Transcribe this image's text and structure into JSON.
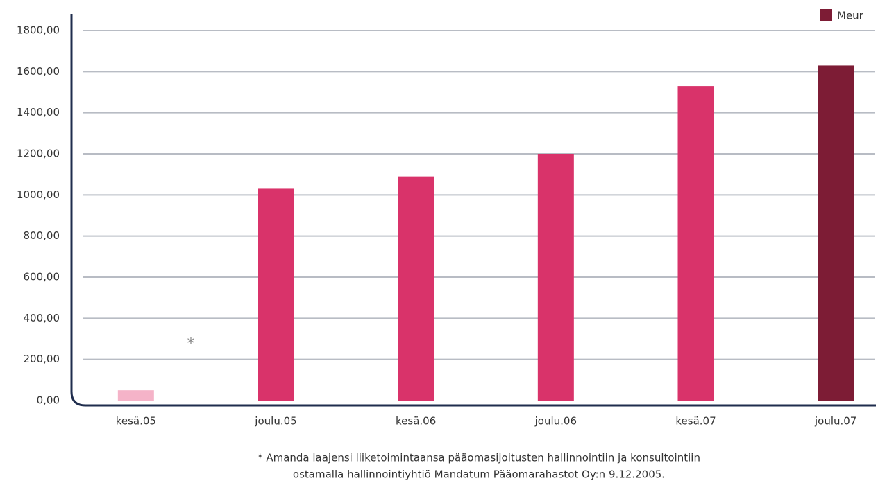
{
  "chart_data": {
    "type": "bar",
    "categories": [
      "kesä.05",
      "joulu.05",
      "kesä.06",
      "joulu.06",
      "kesä.07",
      "joulu.07"
    ],
    "series": [
      {
        "name": "Meur",
        "color": "#7d1c35",
        "values": [
          50,
          1030,
          1090,
          1200,
          1530,
          1630
        ],
        "bar_colors": [
          "#f5b3c8",
          "#d9336a",
          "#d9336a",
          "#d9336a",
          "#d9336a",
          "#7d1c35"
        ]
      }
    ],
    "ylim": [
      0,
      1800
    ],
    "yticks": [
      {
        "value": 0,
        "label": "0,00"
      },
      {
        "value": 200,
        "label": "200,00"
      },
      {
        "value": 400,
        "label": "400,00"
      },
      {
        "value": 600,
        "label": "600,00"
      },
      {
        "value": 800,
        "label": "800,00"
      },
      {
        "value": 1000,
        "label": "1000,00"
      },
      {
        "value": 1200,
        "label": "1200,00"
      },
      {
        "value": 1400,
        "label": "1400,00"
      },
      {
        "value": 1600,
        "label": "1600,00"
      },
      {
        "value": 1800,
        "label": "1800,00"
      }
    ],
    "grid": true,
    "legend": "top-right",
    "annotation": "*",
    "notes": [
      "* Amanda laajensi liiketoimintaansa pääomasijoitusten hallinnointiin ja konsultointiin",
      "ostamalla hallinnointiyhtiö Mandatum Pääomarahastot Oy:n 9.12.2005."
    ]
  }
}
